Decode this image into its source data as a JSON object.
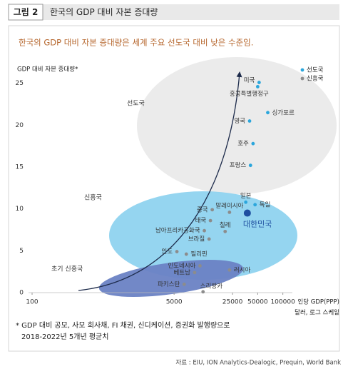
{
  "chart_data": {
    "type": "scatter",
    "figure_label": "그림 2",
    "title": "한국의 GDP 대비 자본 증대량",
    "subtitle": "한국의 GDP 대비 자본 증대량은 세계 주요 선도국 대비 낮은 수준임.",
    "y_axis_label": "GDP 대비 자본 증대량*",
    "x_axis_label": "인당 GDP(PPP)",
    "x_axis_note": "달러, 로그 스케일",
    "xscale": "log",
    "xlim": [
      100,
      130000
    ],
    "ylim": [
      0,
      26
    ],
    "xticks": [
      100,
      5000,
      25000,
      50000,
      100000
    ],
    "yticks": [
      0,
      5,
      10,
      15,
      20,
      25
    ],
    "grid": false,
    "legend": "top-right",
    "regions": [
      "선도국",
      "신흥국",
      "초기 신흥국"
    ],
    "series": [
      {
        "name": "선도국",
        "color": "#2ba6dc",
        "labels": [
          "미국",
          "홍콩특별행정구",
          "싱가포르",
          "영국",
          "호주",
          "프랑스",
          "일본",
          "독일"
        ],
        "x": [
          52000,
          50000,
          66000,
          40000,
          44000,
          41000,
          36000,
          46500
        ],
        "values": [
          25.1,
          24.6,
          21.5,
          20.5,
          17.8,
          15.2,
          10.8,
          10.5
        ]
      },
      {
        "name": "신흥국",
        "color": "#8c8c8c",
        "labels": [
          "중국",
          "말레이시아",
          "태국",
          "남아프리카공화국",
          "칠레",
          "브라질",
          "인도",
          "필리핀",
          "인도네시아",
          "베트남",
          "러시아",
          "파키스탄",
          "스리랑카"
        ],
        "x": [
          14300,
          23000,
          13600,
          11500,
          20400,
          13100,
          5400,
          7000,
          10200,
          8800,
          23000,
          6600,
          11100
        ],
        "values": [
          9.9,
          9.6,
          8.6,
          7.4,
          7.3,
          6.4,
          4.9,
          4.6,
          3.2,
          2.4,
          2.7,
          1.0,
          0.1
        ]
      }
    ],
    "highlight": {
      "label": "대한민국",
      "x": 37600,
      "value": 9.5,
      "color": "#1f4fa0"
    },
    "footnote": [
      "* GDP 대비 공모, 사모 회사채, FI 채권, 신디케이션, 증권화 발행량으로",
      "2018-2022년 5개년 평균치"
    ],
    "source": "자료 : EIU, ION Analytics-Dealogic, Prequin, World Bank"
  }
}
